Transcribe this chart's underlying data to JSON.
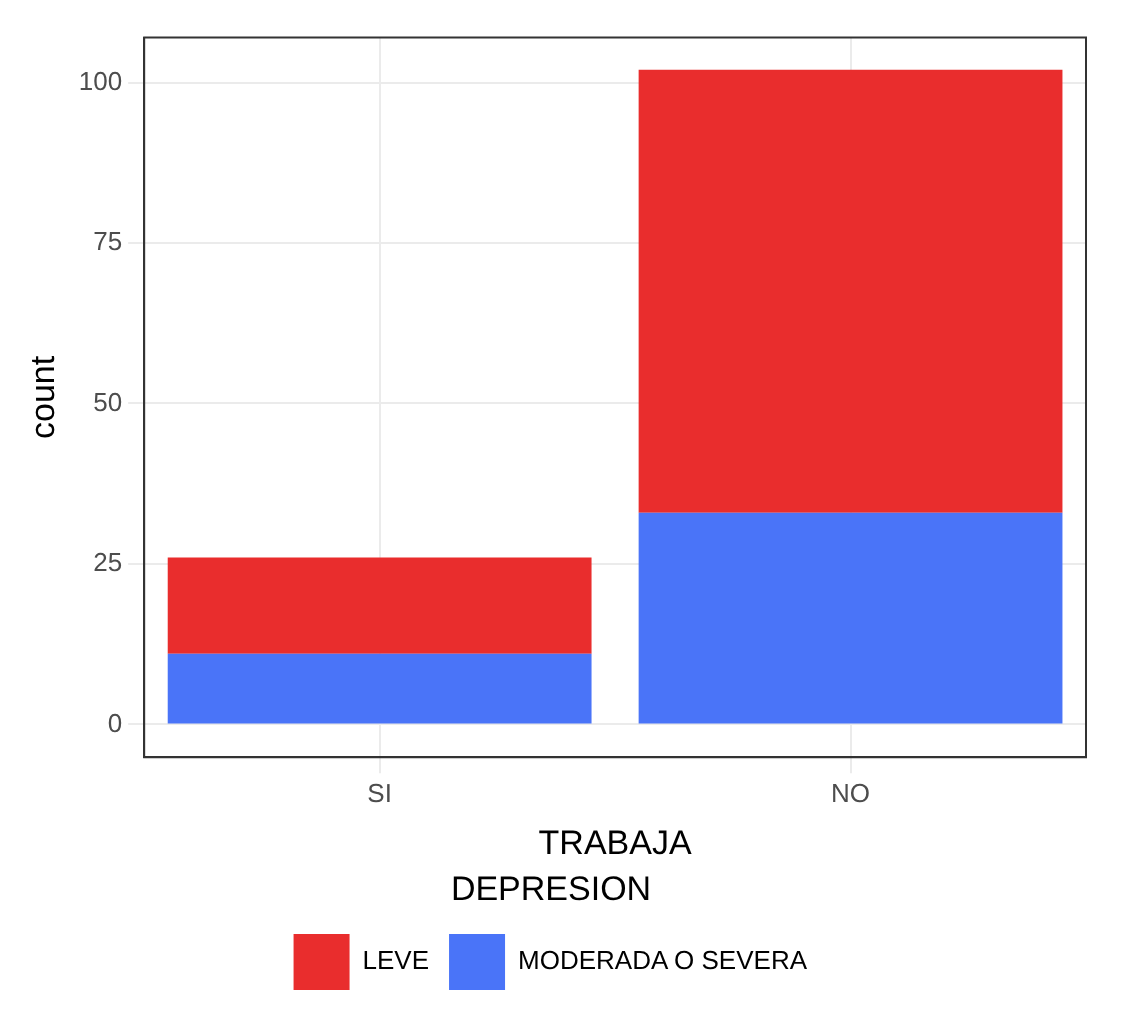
{
  "chart_data": {
    "type": "bar",
    "stacked": true,
    "xlabel": "TRABAJA",
    "ylabel": "count",
    "legend_title": "DEPRESION",
    "categories": [
      "SI",
      "NO"
    ],
    "series": [
      {
        "name": "MODERADA O SEVERA",
        "color": "#4a74f8",
        "values": [
          11,
          33
        ]
      },
      {
        "name": "LEVE",
        "color": "#e92d2d",
        "values": [
          15,
          69
        ]
      }
    ],
    "ylim": [
      -5.1,
      107
    ],
    "yticks": [
      0,
      25,
      50,
      75,
      100
    ],
    "grid": true,
    "legend": "bottom"
  }
}
